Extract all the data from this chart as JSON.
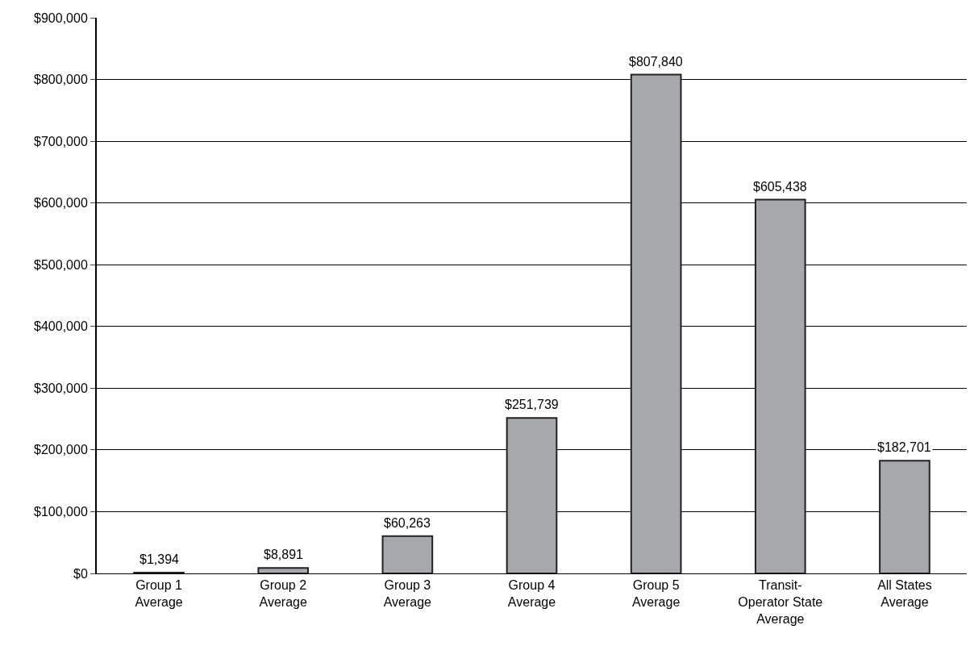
{
  "chart_data": {
    "type": "bar",
    "categories": [
      "Group 1\nAverage",
      "Group 2\nAverage",
      "Group 3\nAverage",
      "Group 4\nAverage",
      "Group 5\nAverage",
      "Transit-\nOperator State\nAverage",
      "All States\nAverage"
    ],
    "values": [
      1394,
      8891,
      60263,
      251739,
      807840,
      605438,
      182701
    ],
    "value_labels": [
      "$1,394",
      "$8,891",
      "$60,263",
      "$251,739",
      "$807,840",
      "$605,438",
      "$182,701"
    ],
    "color": "#a6a8ab",
    "ylim": [
      0,
      900000
    ],
    "yticks": [
      {
        "value": 0,
        "label": "$0"
      },
      {
        "value": 100000,
        "label": "$100,000"
      },
      {
        "value": 200000,
        "label": "$200,000"
      },
      {
        "value": 300000,
        "label": "$300,000"
      },
      {
        "value": 400000,
        "label": "$400,000"
      },
      {
        "value": 500000,
        "label": "$500,000"
      },
      {
        "value": 600000,
        "label": "$600,000"
      },
      {
        "value": 700000,
        "label": "$700,000"
      },
      {
        "value": 800000,
        "label": "$800,000"
      },
      {
        "value": 900000,
        "label": "$900,000"
      }
    ],
    "grid": "y"
  }
}
